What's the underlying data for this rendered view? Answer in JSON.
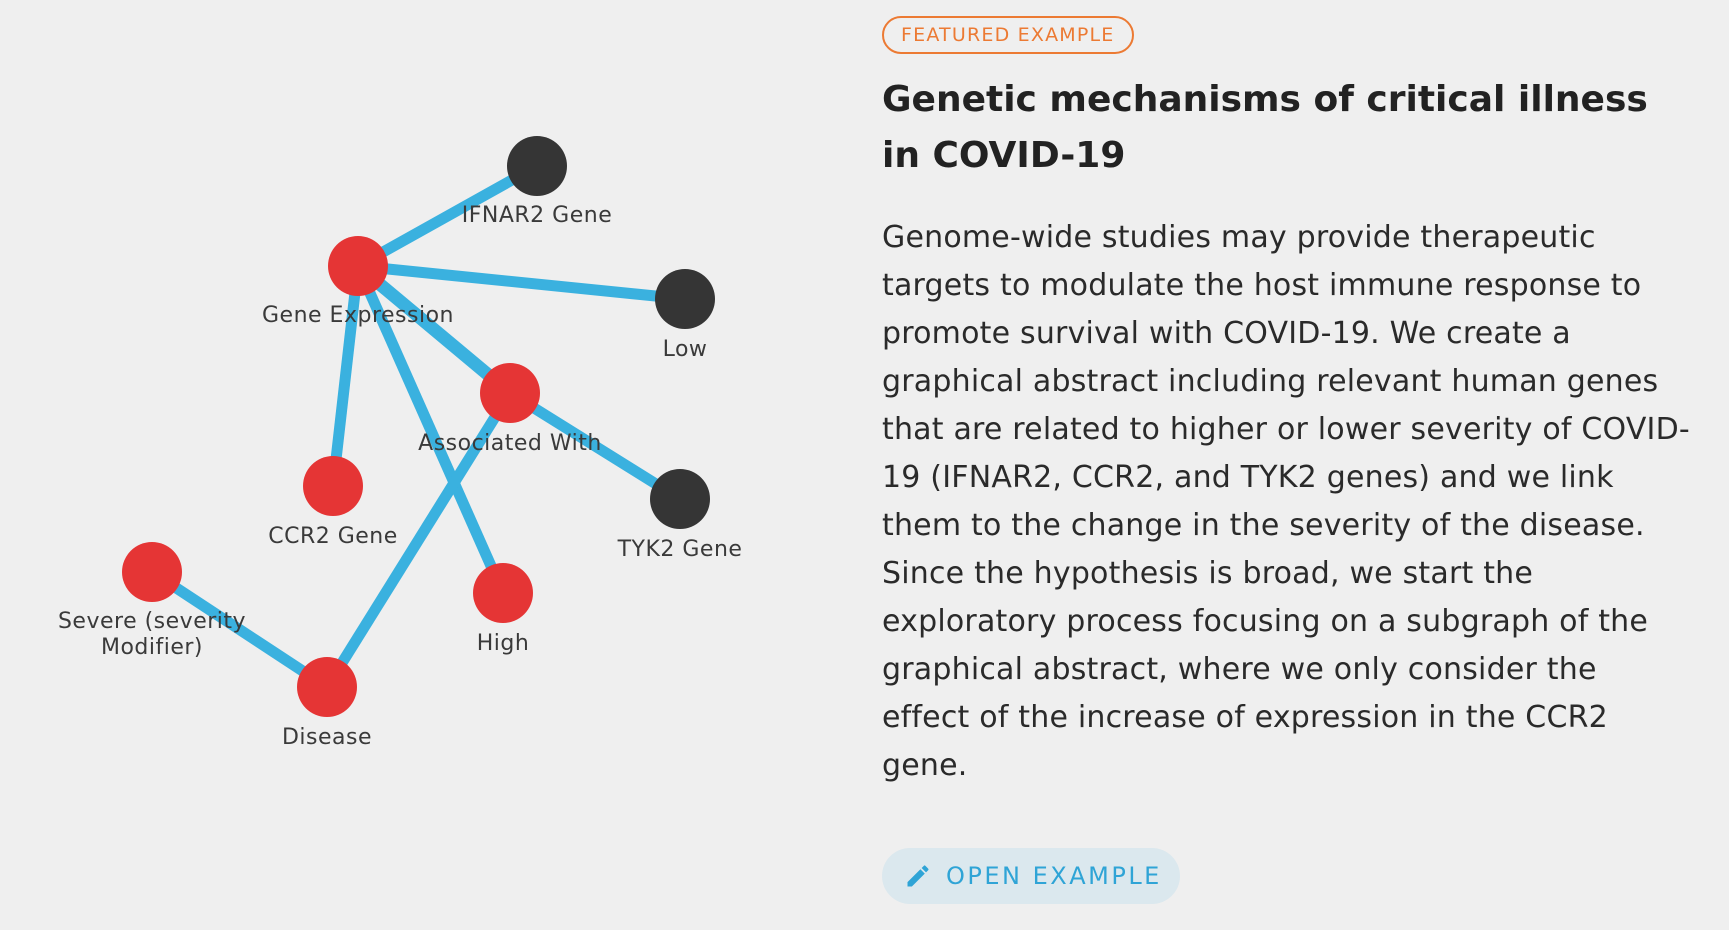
{
  "graph": {
    "nodes": [
      {
        "id": "ifnar2",
        "label": "IFNAR2 Gene",
        "kind": "gene"
      },
      {
        "id": "geneexpr",
        "label": "Gene Expression",
        "kind": "concept"
      },
      {
        "id": "low",
        "label": "Low",
        "kind": "gene"
      },
      {
        "id": "assoc",
        "label": "Associated With",
        "kind": "concept"
      },
      {
        "id": "ccr2",
        "label": "CCR2 Gene",
        "kind": "concept"
      },
      {
        "id": "tyk2",
        "label": "TYK2 Gene",
        "kind": "gene"
      },
      {
        "id": "severe",
        "label": "Severe (severity Modifier)",
        "kind": "concept"
      },
      {
        "id": "high",
        "label": "High",
        "kind": "concept"
      },
      {
        "id": "disease",
        "label": "Disease",
        "kind": "concept"
      }
    ],
    "edges": [
      [
        "geneexpr",
        "ifnar2"
      ],
      [
        "geneexpr",
        "low"
      ],
      [
        "geneexpr",
        "assoc"
      ],
      [
        "geneexpr",
        "ccr2"
      ],
      [
        "geneexpr",
        "high"
      ],
      [
        "assoc",
        "tyk2"
      ],
      [
        "assoc",
        "disease"
      ],
      [
        "severe",
        "disease"
      ]
    ],
    "colors": {
      "concept": "#e53535",
      "gene": "#353535",
      "edge": "#3ab1df"
    }
  },
  "featured": {
    "badge": "FEATURED EXAMPLE",
    "title": "Genetic mechanisms of critical illness in COVID-19",
    "description": "Genome-wide studies may provide therapeutic targets to modulate the host immune response to promote survival with COVID-19. We create a graphical abstract including relevant human genes that are related to higher or lower severity of COVID-19 (IFNAR2, CCR2, and TYK2 genes) and we link them to the change in the severity of the disease. Since the hypothesis is broad, we start the exploratory process focusing on a subgraph of the graphical abstract, where we only consider the effect of the increase of expression in the CCR2 gene.",
    "button_label": "OPEN EXAMPLE",
    "button_icon": "pencil-icon"
  }
}
